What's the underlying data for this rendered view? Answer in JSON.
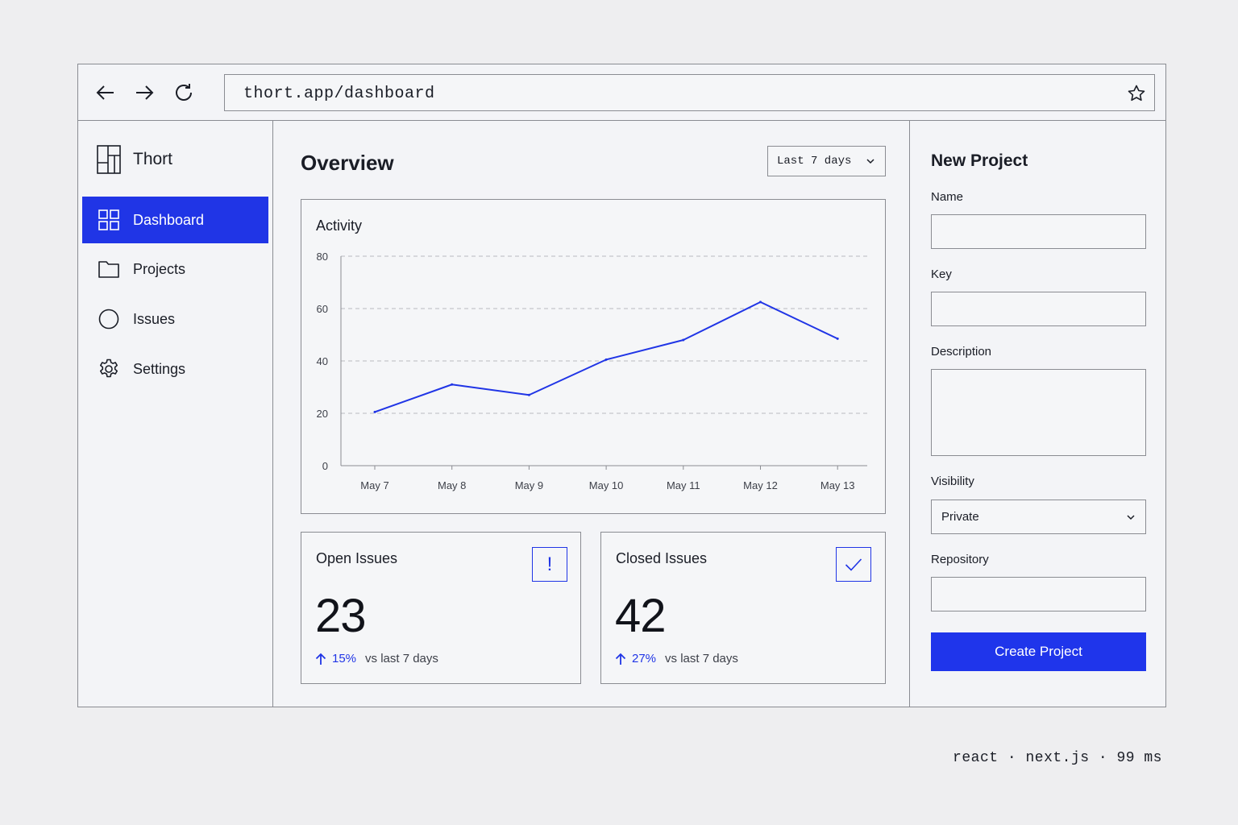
{
  "browser": {
    "url": "thort.app/dashboard",
    "back_icon": "arrow-left-icon",
    "forward_icon": "arrow-right-icon",
    "reload_icon": "reload-icon",
    "bookmark_icon": "star-icon"
  },
  "sidebar": {
    "brand": "Thort",
    "items": [
      {
        "label": "Dashboard",
        "icon": "grid-icon",
        "active": true
      },
      {
        "label": "Projects",
        "icon": "folder-icon",
        "active": false
      },
      {
        "label": "Issues",
        "icon": "circle-icon",
        "active": false
      },
      {
        "label": "Settings",
        "icon": "gear-icon",
        "active": false
      }
    ]
  },
  "main": {
    "title": "Overview",
    "range_select": "Last 7 days",
    "activity_title": "Activity",
    "stats": [
      {
        "title": "Open Issues",
        "value": "23",
        "delta": "15%",
        "note": "vs last 7 days",
        "icon": "exclamation-icon"
      },
      {
        "title": "Closed Issues",
        "value": "42",
        "delta": "27%",
        "note": "vs last 7 days",
        "icon": "check-icon"
      }
    ]
  },
  "chart_data": {
    "type": "line",
    "title": "Activity",
    "categories": [
      "May 7",
      "May 8",
      "May 9",
      "May 10",
      "May 11",
      "May 12",
      "May 13"
    ],
    "series": [
      {
        "values": [
          20.5,
          31,
          27,
          40.5,
          48,
          62.5,
          48.5
        ]
      }
    ],
    "ylim": [
      0,
      80
    ],
    "yticks": [
      0,
      20,
      40,
      60,
      80
    ],
    "grid": true,
    "color": "#2035e6"
  },
  "form": {
    "title": "New Project",
    "name_label": "Name",
    "key_label": "Key",
    "description_label": "Description",
    "visibility_label": "Visibility",
    "visibility_value": "Private",
    "repository_label": "Repository",
    "submit_label": "Create Project"
  },
  "footer": {
    "meta": "react · next.js · 99 ms"
  },
  "colors": {
    "accent": "#2035e6",
    "border": "#8a8c92",
    "background": "#eeeef0"
  }
}
